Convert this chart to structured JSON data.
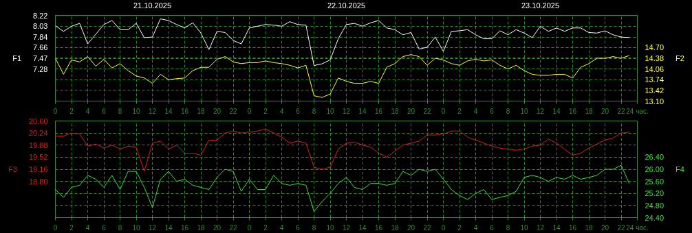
{
  "chart_data": [
    {
      "type": "line",
      "x": [
        "2025-10-21T00:00",
        "2025-10-21T01:00",
        "2025-10-21T02:00",
        "2025-10-21T03:00",
        "2025-10-21T04:00",
        "2025-10-21T05:00",
        "2025-10-21T06:00",
        "2025-10-21T07:00",
        "2025-10-21T08:00",
        "2025-10-21T09:00",
        "2025-10-21T10:00",
        "2025-10-21T11:00",
        "2025-10-21T12:00",
        "2025-10-21T13:00",
        "2025-10-21T14:00",
        "2025-10-21T15:00",
        "2025-10-21T16:00",
        "2025-10-21T17:00",
        "2025-10-21T18:00",
        "2025-10-21T19:00",
        "2025-10-21T20:00",
        "2025-10-21T21:00",
        "2025-10-21T22:00",
        "2025-10-21T23:00",
        "2025-10-22T00:00",
        "2025-10-22T01:00",
        "2025-10-22T02:00",
        "2025-10-22T03:00",
        "2025-10-22T04:00",
        "2025-10-22T05:00",
        "2025-10-22T06:00",
        "2025-10-22T07:00",
        "2025-10-22T08:00",
        "2025-10-22T09:00",
        "2025-10-22T10:00",
        "2025-10-22T11:00",
        "2025-10-22T12:00",
        "2025-10-22T13:00",
        "2025-10-22T14:00",
        "2025-10-22T15:00",
        "2025-10-22T16:00",
        "2025-10-22T17:00",
        "2025-10-22T18:00",
        "2025-10-22T19:00",
        "2025-10-22T20:00",
        "2025-10-22T21:00",
        "2025-10-22T22:00",
        "2025-10-22T23:00",
        "2025-10-23T00:00",
        "2025-10-23T01:00",
        "2025-10-23T02:00",
        "2025-10-23T03:00",
        "2025-10-23T04:00",
        "2025-10-23T05:00",
        "2025-10-23T06:00",
        "2025-10-23T07:00",
        "2025-10-23T08:00",
        "2025-10-23T09:00",
        "2025-10-23T10:00",
        "2025-10-23T11:00",
        "2025-10-23T12:00",
        "2025-10-23T13:00",
        "2025-10-23T14:00",
        "2025-10-23T15:00",
        "2025-10-23T16:00",
        "2025-10-23T17:00",
        "2025-10-23T18:00",
        "2025-10-23T19:00",
        "2025-10-23T20:00",
        "2025-10-23T21:00",
        "2025-10-23T22:00",
        "2025-10-23T23:00"
      ],
      "series": [
        {
          "color": "#ffffff",
          "values": [
            8.04,
            7.94,
            8.03,
            8.08,
            7.72,
            7.89,
            8.06,
            8.13,
            7.97,
            7.97,
            8.08,
            7.83,
            7.84,
            8.16,
            8.13,
            8.06,
            8.0,
            8.09,
            7.91,
            7.62,
            7.94,
            7.92,
            7.78,
            7.72,
            8.0,
            8.03,
            8.06,
            8.05,
            8.03,
            8.11,
            8.06,
            8.05,
            7.34,
            7.37,
            7.44,
            7.81,
            8.06,
            8.08,
            8.03,
            8.09,
            8.13,
            8.0,
            7.97,
            7.88,
            7.92,
            7.63,
            7.66,
            7.84,
            7.59,
            7.94,
            7.95,
            7.97,
            7.88,
            7.81,
            7.81,
            7.95,
            7.88,
            7.97,
            7.91,
            7.83,
            8.03,
            7.94,
            8.0,
            7.94,
            8.0,
            8.0,
            7.92,
            7.91,
            7.95,
            7.88,
            7.84,
            7.83
          ]
        },
        {
          "color": "#ffff40",
          "axis": "y2",
          "values": [
            14.38,
            13.9,
            14.33,
            14.27,
            14.43,
            14.14,
            14.35,
            14.09,
            14.22,
            14.01,
            13.85,
            13.79,
            13.63,
            13.9,
            13.74,
            13.77,
            13.79,
            14.01,
            14.11,
            14.11,
            14.35,
            14.43,
            14.27,
            14.22,
            14.25,
            14.25,
            14.3,
            14.25,
            14.22,
            14.17,
            14.09,
            14.17,
            13.26,
            13.21,
            13.31,
            13.79,
            13.69,
            13.63,
            13.63,
            13.69,
            13.63,
            14.11,
            14.22,
            14.43,
            14.49,
            14.43,
            14.17,
            14.38,
            14.33,
            14.22,
            14.17,
            14.3,
            14.35,
            14.3,
            14.33,
            14.17,
            14.06,
            14.17,
            14.01,
            13.9,
            13.87,
            13.87,
            13.9,
            13.9,
            13.79,
            14.11,
            14.22,
            14.38,
            14.38,
            14.43,
            14.38,
            14.46
          ]
        }
      ],
      "ylabel": "F1",
      "y2label": "F2",
      "xlim": [
        "2025-10-21T00:00",
        "2025-10-24T00:00"
      ],
      "xticks": [
        {
          "value": "2025-10-21T00:00",
          "label": "0"
        },
        {
          "value": "2025-10-21T02:00",
          "label": "2"
        },
        {
          "value": "2025-10-21T04:00",
          "label": "4"
        },
        {
          "value": "2025-10-21T06:00",
          "label": "6"
        },
        {
          "value": "2025-10-21T08:00",
          "label": "8"
        },
        {
          "value": "2025-10-21T10:00",
          "label": "10"
        },
        {
          "value": "2025-10-21T12:00",
          "label": "12"
        },
        {
          "value": "2025-10-21T14:00",
          "label": "14"
        },
        {
          "value": "2025-10-21T16:00",
          "label": "16"
        },
        {
          "value": "2025-10-21T18:00",
          "label": "18"
        },
        {
          "value": "2025-10-21T20:00",
          "label": "20"
        },
        {
          "value": "2025-10-21T22:00",
          "label": "22"
        },
        {
          "value": "2025-10-22T00:00",
          "label": "0"
        },
        {
          "value": "2025-10-22T02:00",
          "label": "2"
        },
        {
          "value": "2025-10-22T04:00",
          "label": "4"
        },
        {
          "value": "2025-10-22T06:00",
          "label": "6"
        },
        {
          "value": "2025-10-22T08:00",
          "label": "8"
        },
        {
          "value": "2025-10-22T10:00",
          "label": "10"
        },
        {
          "value": "2025-10-22T12:00",
          "label": "12"
        },
        {
          "value": "2025-10-22T14:00",
          "label": "14"
        },
        {
          "value": "2025-10-22T16:00",
          "label": "16"
        },
        {
          "value": "2025-10-22T18:00",
          "label": "18"
        },
        {
          "value": "2025-10-22T20:00",
          "label": "20"
        },
        {
          "value": "2025-10-22T22:00",
          "label": "22"
        },
        {
          "value": "2025-10-23T00:00",
          "label": "0"
        },
        {
          "value": "2025-10-23T02:00",
          "label": "2"
        },
        {
          "value": "2025-10-23T04:00",
          "label": "4"
        },
        {
          "value": "2025-10-23T06:00",
          "label": "6"
        },
        {
          "value": "2025-10-23T08:00",
          "label": "8"
        },
        {
          "value": "2025-10-23T10:00",
          "label": "10"
        },
        {
          "value": "2025-10-23T12:00",
          "label": "12"
        },
        {
          "value": "2025-10-23T14:00",
          "label": "14"
        },
        {
          "value": "2025-10-23T16:00",
          "label": "16"
        },
        {
          "value": "2025-10-23T18:00",
          "label": "18"
        },
        {
          "value": "2025-10-23T20:00",
          "label": "20"
        },
        {
          "value": "2025-10-23T22:00",
          "label": "22"
        },
        {
          "value": "2025-10-24T00:00",
          "label": "24 час."
        }
      ],
      "x2lim": [
        "2025-10-21T00:00",
        "2025-10-24T00:00"
      ],
      "x2ticks": [
        {
          "value": "2025-10-21T12:00",
          "label": "21.10.2025"
        },
        {
          "value": "2025-10-22T12:00",
          "label": "22.10.2025"
        },
        {
          "value": "2025-10-23T12:00",
          "label": "23.10.2025"
        }
      ],
      "ylim": [
        6.716,
        8.22
      ],
      "yticks": [
        {
          "value": 8.22,
          "label": "8.22"
        },
        {
          "value": 8.03,
          "label": "8.03"
        },
        {
          "value": 7.84,
          "label": "7.84"
        },
        {
          "value": 7.66,
          "label": "7.66"
        },
        {
          "value": 7.47,
          "label": "7.47"
        },
        {
          "value": 7.28,
          "label": "7.28"
        }
      ],
      "y2lim": [
        13.1,
        15.66
      ],
      "y2ticks": [
        {
          "value": 14.7,
          "label": "14.70"
        },
        {
          "value": 14.38,
          "label": "14.38"
        },
        {
          "value": 14.06,
          "label": "14.06"
        },
        {
          "value": 13.74,
          "label": "13.74"
        },
        {
          "value": 13.42,
          "label": "13.42"
        },
        {
          "value": 13.1,
          "label": "13.10"
        }
      ],
      "grid": true
    },
    {
      "type": "line",
      "x": [
        "2025-10-21T00:00",
        "2025-10-21T01:00",
        "2025-10-21T02:00",
        "2025-10-21T03:00",
        "2025-10-21T04:00",
        "2025-10-21T05:00",
        "2025-10-21T06:00",
        "2025-10-21T07:00",
        "2025-10-21T08:00",
        "2025-10-21T09:00",
        "2025-10-21T10:00",
        "2025-10-21T11:00",
        "2025-10-21T12:00",
        "2025-10-21T13:00",
        "2025-10-21T14:00",
        "2025-10-21T15:00",
        "2025-10-21T16:00",
        "2025-10-21T17:00",
        "2025-10-21T18:00",
        "2025-10-21T19:00",
        "2025-10-21T20:00",
        "2025-10-21T21:00",
        "2025-10-21T22:00",
        "2025-10-21T23:00",
        "2025-10-22T00:00",
        "2025-10-22T01:00",
        "2025-10-22T02:00",
        "2025-10-22T03:00",
        "2025-10-22T04:00",
        "2025-10-22T05:00",
        "2025-10-22T06:00",
        "2025-10-22T07:00",
        "2025-10-22T08:00",
        "2025-10-22T09:00",
        "2025-10-22T10:00",
        "2025-10-22T11:00",
        "2025-10-22T12:00",
        "2025-10-22T13:00",
        "2025-10-22T14:00",
        "2025-10-22T15:00",
        "2025-10-22T16:00",
        "2025-10-22T17:00",
        "2025-10-22T18:00",
        "2025-10-22T19:00",
        "2025-10-22T20:00",
        "2025-10-22T21:00",
        "2025-10-22T22:00",
        "2025-10-22T23:00",
        "2025-10-23T00:00",
        "2025-10-23T01:00",
        "2025-10-23T02:00",
        "2025-10-23T03:00",
        "2025-10-23T04:00",
        "2025-10-23T05:00",
        "2025-10-23T06:00",
        "2025-10-23T07:00",
        "2025-10-23T08:00",
        "2025-10-23T09:00",
        "2025-10-23T10:00",
        "2025-10-23T11:00",
        "2025-10-23T12:00",
        "2025-10-23T13:00",
        "2025-10-23T14:00",
        "2025-10-23T15:00",
        "2025-10-23T16:00",
        "2025-10-23T17:00",
        "2025-10-23T18:00",
        "2025-10-23T19:00",
        "2025-10-23T20:00",
        "2025-10-23T21:00",
        "2025-10-23T22:00",
        "2025-10-23T23:00"
      ],
      "series": [
        {
          "color": "#d42020",
          "values": [
            20.15,
            20.15,
            20.24,
            20.21,
            19.85,
            19.91,
            19.79,
            19.88,
            19.76,
            19.85,
            19.82,
            19.1,
            19.94,
            20.0,
            19.76,
            19.88,
            19.64,
            19.64,
            19.58,
            20.03,
            20.03,
            20.24,
            20.3,
            20.24,
            20.27,
            20.3,
            20.36,
            20.24,
            20.12,
            19.94,
            20.0,
            19.94,
            19.22,
            19.16,
            19.22,
            19.76,
            19.94,
            19.97,
            19.88,
            19.82,
            19.64,
            19.52,
            19.7,
            19.88,
            19.94,
            20.0,
            20.18,
            20.18,
            20.21,
            20.3,
            20.3,
            20.12,
            20.03,
            19.94,
            19.85,
            19.79,
            19.76,
            19.73,
            19.76,
            19.85,
            19.88,
            20.06,
            19.94,
            19.76,
            19.58,
            19.64,
            19.79,
            19.91,
            20.03,
            20.09,
            20.24,
            20.27
          ]
        },
        {
          "color": "#40e040",
          "axis": "y2",
          "values": [
            25.33,
            25.07,
            25.4,
            25.47,
            25.8,
            25.67,
            25.4,
            25.8,
            25.33,
            25.93,
            25.93,
            25.4,
            24.73,
            25.67,
            25.93,
            25.6,
            25.67,
            25.47,
            25.4,
            25.33,
            25.73,
            26.0,
            25.93,
            25.27,
            25.67,
            25.33,
            25.33,
            25.8,
            25.53,
            25.47,
            25.53,
            25.47,
            24.6,
            24.93,
            25.2,
            25.53,
            25.73,
            25.4,
            25.33,
            25.53,
            25.53,
            25.47,
            25.53,
            25.93,
            25.8,
            26.0,
            25.93,
            26.0,
            25.67,
            25.33,
            25.13,
            25.0,
            25.2,
            25.33,
            25.0,
            25.07,
            25.13,
            25.27,
            25.73,
            25.8,
            25.73,
            25.6,
            25.73,
            25.67,
            25.8,
            25.67,
            25.73,
            25.8,
            26.0,
            26.0,
            26.13,
            25.53
          ]
        }
      ],
      "ylabel": "F3",
      "y2label": "F4",
      "xlim": [
        "2025-10-21T00:00",
        "2025-10-24T00:00"
      ],
      "xticks": [
        {
          "value": "2025-10-21T00:00",
          "label": "0"
        },
        {
          "value": "2025-10-21T02:00",
          "label": "2"
        },
        {
          "value": "2025-10-21T04:00",
          "label": "4"
        },
        {
          "value": "2025-10-21T06:00",
          "label": "6"
        },
        {
          "value": "2025-10-21T08:00",
          "label": "8"
        },
        {
          "value": "2025-10-21T10:00",
          "label": "10"
        },
        {
          "value": "2025-10-21T12:00",
          "label": "12"
        },
        {
          "value": "2025-10-21T14:00",
          "label": "14"
        },
        {
          "value": "2025-10-21T16:00",
          "label": "16"
        },
        {
          "value": "2025-10-21T18:00",
          "label": "18"
        },
        {
          "value": "2025-10-21T20:00",
          "label": "20"
        },
        {
          "value": "2025-10-21T22:00",
          "label": "22"
        },
        {
          "value": "2025-10-22T00:00",
          "label": "0"
        },
        {
          "value": "2025-10-22T02:00",
          "label": "2"
        },
        {
          "value": "2025-10-22T04:00",
          "label": "4"
        },
        {
          "value": "2025-10-22T06:00",
          "label": "6"
        },
        {
          "value": "2025-10-22T08:00",
          "label": "8"
        },
        {
          "value": "2025-10-22T10:00",
          "label": "10"
        },
        {
          "value": "2025-10-22T12:00",
          "label": "12"
        },
        {
          "value": "2025-10-22T14:00",
          "label": "14"
        },
        {
          "value": "2025-10-22T16:00",
          "label": "16"
        },
        {
          "value": "2025-10-22T18:00",
          "label": "18"
        },
        {
          "value": "2025-10-22T20:00",
          "label": "20"
        },
        {
          "value": "2025-10-22T22:00",
          "label": "22"
        },
        {
          "value": "2025-10-23T00:00",
          "label": "0"
        },
        {
          "value": "2025-10-23T02:00",
          "label": "2"
        },
        {
          "value": "2025-10-23T04:00",
          "label": "4"
        },
        {
          "value": "2025-10-23T06:00",
          "label": "6"
        },
        {
          "value": "2025-10-23T08:00",
          "label": "8"
        },
        {
          "value": "2025-10-23T10:00",
          "label": "10"
        },
        {
          "value": "2025-10-23T12:00",
          "label": "12"
        },
        {
          "value": "2025-10-23T14:00",
          "label": "14"
        },
        {
          "value": "2025-10-23T16:00",
          "label": "16"
        },
        {
          "value": "2025-10-23T18:00",
          "label": "18"
        },
        {
          "value": "2025-10-23T20:00",
          "label": "20"
        },
        {
          "value": "2025-10-23T22:00",
          "label": "22"
        },
        {
          "value": "2025-10-24T00:00",
          "label": "24 час."
        }
      ],
      "ylim": [
        17.72,
        20.6
      ],
      "yticks": [
        {
          "value": 20.6,
          "label": "20.60"
        },
        {
          "value": 20.24,
          "label": "20.24"
        },
        {
          "value": 19.88,
          "label": "19.88"
        },
        {
          "value": 19.52,
          "label": "19.52"
        },
        {
          "value": 19.16,
          "label": "19.16"
        },
        {
          "value": 18.8,
          "label": "18.80"
        }
      ],
      "y2lim": [
        24.4,
        27.6
      ],
      "y2ticks": [
        {
          "value": 26.4,
          "label": "26.40"
        },
        {
          "value": 26.0,
          "label": "26.00"
        },
        {
          "value": 25.6,
          "label": "25.60"
        },
        {
          "value": 25.2,
          "label": "25.20"
        },
        {
          "value": 24.8,
          "label": "24.80"
        },
        {
          "value": 24.4,
          "label": "24.40"
        }
      ],
      "grid": true
    }
  ]
}
